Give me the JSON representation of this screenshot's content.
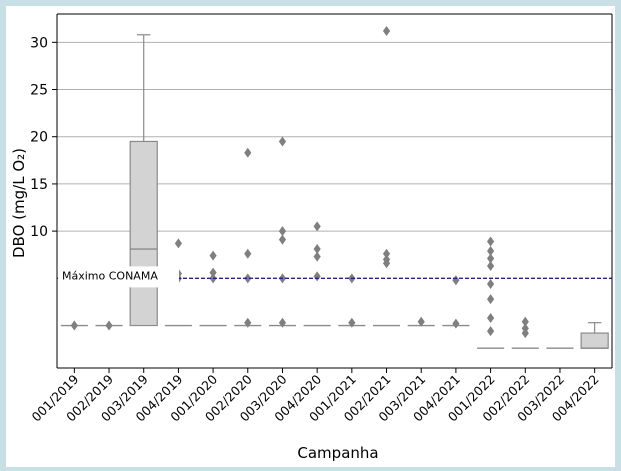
{
  "chart_data": {
    "type": "box",
    "xlabel": "Campanha",
    "ylabel": "DBO (mg/L O₂)",
    "categories": [
      "001/2019",
      "002/2019",
      "003/2019",
      "004/2019",
      "001/2020",
      "002/2020",
      "003/2020",
      "004/2020",
      "001/2021",
      "002/2021",
      "003/2021",
      "004/2021",
      "001/2022",
      "002/2022",
      "003/2022",
      "004/2022"
    ],
    "ylim": [
      -4.5,
      33
    ],
    "yticks": [
      10,
      15,
      20,
      25,
      30
    ],
    "grid": "horizontal",
    "reference_line": {
      "label": "Máximo CONAMA",
      "value": 5,
      "color": "#1f1fa8"
    },
    "boxes": [
      {
        "min": 0,
        "q1": 0,
        "median": 0,
        "q3": 0,
        "max": 0,
        "outliers": [
          0
        ]
      },
      {
        "min": 0,
        "q1": 0,
        "median": 0,
        "q3": 0,
        "max": 0,
        "outliers": [
          0
        ]
      },
      {
        "min": 0,
        "q1": 0,
        "median": 8.1,
        "q3": 19.5,
        "max": 30.8,
        "outliers": []
      },
      {
        "min": 0,
        "q1": 0,
        "median": 0,
        "q3": 0,
        "max": 0,
        "outliers": [
          8.7,
          5.5,
          5.0
        ]
      },
      {
        "min": 0,
        "q1": 0,
        "median": 0,
        "q3": 0,
        "max": 0,
        "outliers": [
          7.4,
          5.6,
          5.0
        ]
      },
      {
        "min": 0,
        "q1": 0,
        "median": 0,
        "q3": 0,
        "max": 0,
        "outliers": [
          18.3,
          7.6,
          5.0,
          0.3
        ]
      },
      {
        "min": 0,
        "q1": 0,
        "median": 0,
        "q3": 0,
        "max": 0,
        "outliers": [
          19.5,
          10.0,
          9.1,
          5.0,
          0.3
        ]
      },
      {
        "min": 0,
        "q1": 0,
        "median": 0,
        "q3": 0,
        "max": 0,
        "outliers": [
          10.5,
          8.1,
          7.3,
          5.2
        ]
      },
      {
        "min": 0,
        "q1": 0,
        "median": 0,
        "q3": 0,
        "max": 0,
        "outliers": [
          5.0,
          0.3
        ]
      },
      {
        "min": 0,
        "q1": 0,
        "median": 0,
        "q3": 0,
        "max": 0,
        "outliers": [
          31.2,
          7.6,
          7.0,
          6.6
        ]
      },
      {
        "min": 0,
        "q1": 0,
        "median": 0,
        "q3": 0,
        "max": 0,
        "outliers": [
          0.4
        ]
      },
      {
        "min": 0,
        "q1": 0,
        "median": 0,
        "q3": 0,
        "max": 0,
        "outliers": [
          4.8,
          0.2
        ]
      },
      {
        "min": -2.4,
        "q1": -2.4,
        "median": -2.4,
        "q3": -2.4,
        "max": -2.4,
        "outliers": [
          8.9,
          7.9,
          7.1,
          6.3,
          4.4,
          2.8,
          0.8,
          -0.6
        ]
      },
      {
        "min": -2.4,
        "q1": -2.4,
        "median": -2.4,
        "q3": -2.4,
        "max": -2.4,
        "outliers": [
          0.4,
          -0.3,
          -0.8
        ]
      },
      {
        "min": -2.4,
        "q1": -2.4,
        "median": -2.4,
        "q3": -2.4,
        "max": -2.4,
        "outliers": []
      },
      {
        "min": -2.4,
        "q1": -2.4,
        "median": -2.4,
        "q3": -0.8,
        "max": 0.3,
        "outliers": []
      }
    ],
    "colors": {
      "box_fill": "#d3d3d3",
      "box_edge": "#8a8a8a",
      "outlier": "#7f7f7f",
      "grid": "#b0b0b0",
      "axis": "#000000"
    }
  }
}
